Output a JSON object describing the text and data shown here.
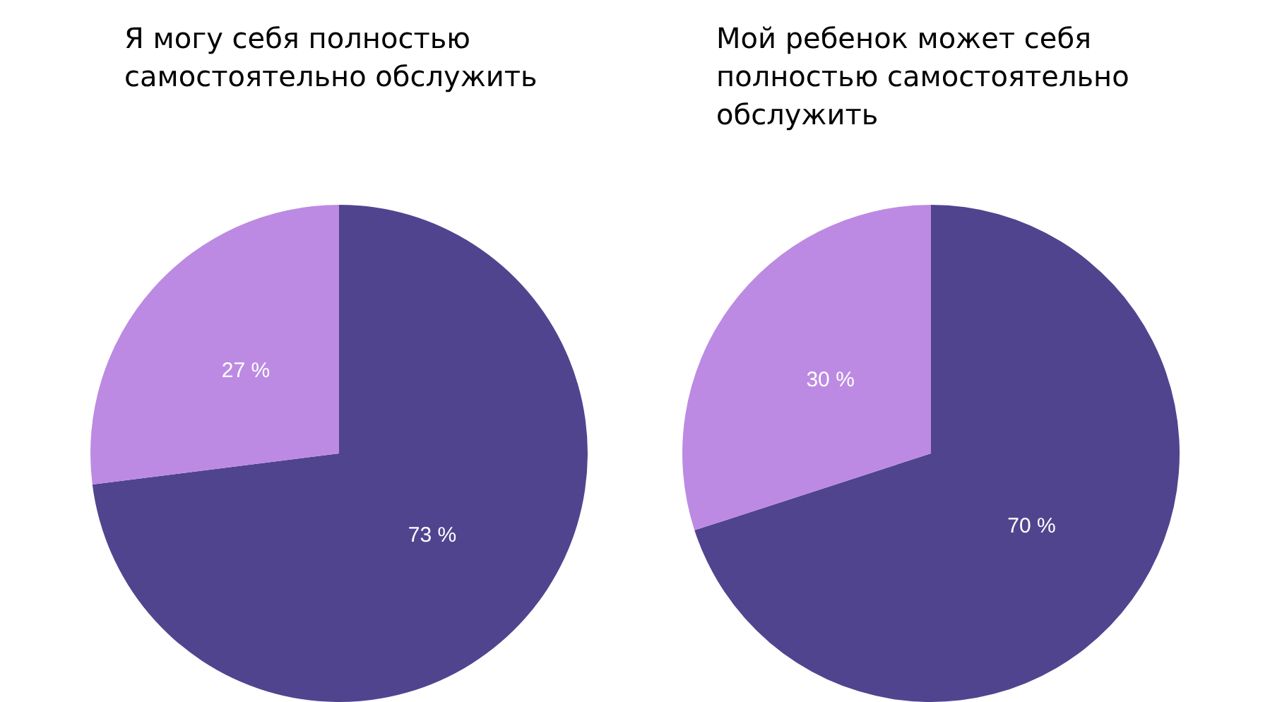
{
  "chart_data": [
    {
      "type": "pie",
      "title": "Я могу себя полностью самостоятельно обслужить",
      "categories": [
        null,
        null
      ],
      "values": [
        73,
        27
      ],
      "colors": [
        "#51448f",
        "#bc8ae3"
      ],
      "value_labels": [
        "73 %",
        "27 %"
      ],
      "legend": false
    },
    {
      "type": "pie",
      "title": "Мой ребенок может себя полностью самостоятельно обслужить",
      "categories": [
        null,
        null
      ],
      "values": [
        70,
        30
      ],
      "colors": [
        "#51448f",
        "#bc8ae3"
      ],
      "value_labels": [
        "70 %",
        "30 %"
      ],
      "legend": false
    }
  ]
}
